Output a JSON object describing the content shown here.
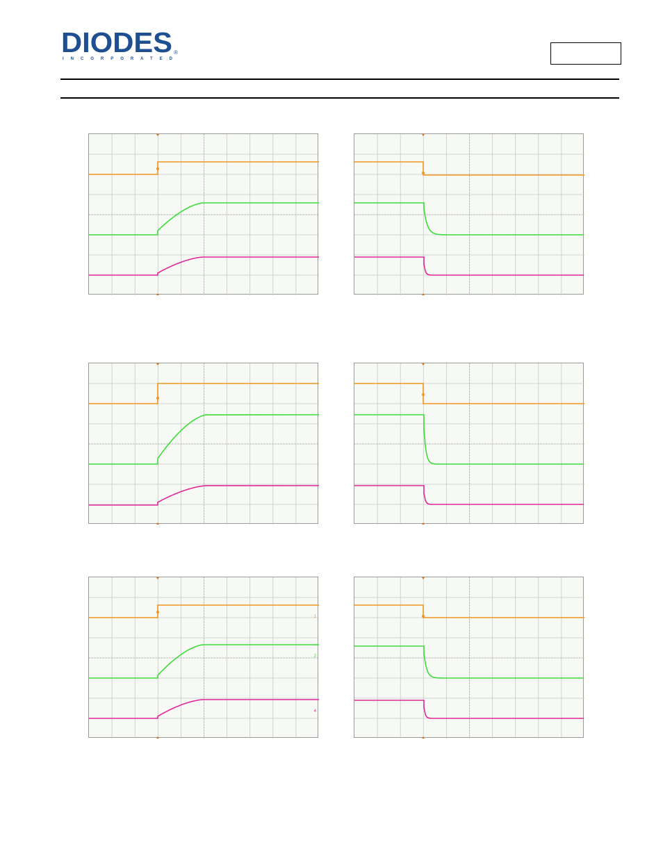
{
  "header": {
    "logo_text": "DIODES",
    "logo_subtext": "INCORPORATED",
    "part_number": ""
  },
  "colors": {
    "brand_blue": "#1d4f91",
    "trace_enable": "#f0961e",
    "trace_output": "#3ddc3a",
    "trace_current": "#e0289a",
    "grid": "#c8c8c8",
    "trigger_marker": "#e07010"
  },
  "scope_captures": [
    {
      "id": "turn-on-1",
      "transition": "rising",
      "channel_markers": []
    },
    {
      "id": "turn-off-1",
      "transition": "falling",
      "channel_markers": []
    },
    {
      "id": "turn-on-2",
      "transition": "rising",
      "channel_markers": []
    },
    {
      "id": "turn-off-2",
      "transition": "falling",
      "channel_markers": []
    },
    {
      "id": "turn-on-3",
      "transition": "rising",
      "channel_markers": [
        "1",
        "2",
        "4"
      ]
    },
    {
      "id": "turn-off-3",
      "transition": "falling",
      "channel_markers": []
    }
  ]
}
